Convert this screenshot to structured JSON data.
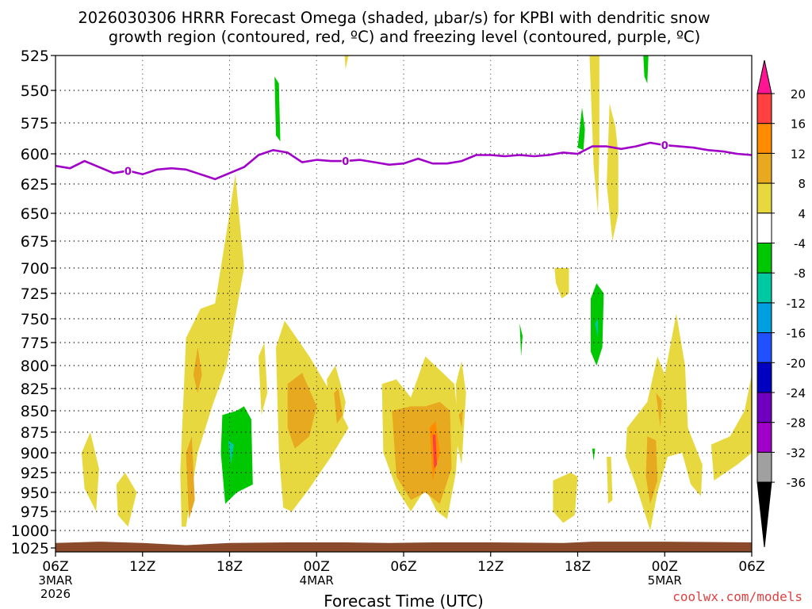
{
  "chart_data": {
    "type": "time-height",
    "title_line1": "2026030306 HRRR Forecast Omega (shaded, μbar/s) for KPBI with dendritic snow",
    "title_line2": "growth region (contoured, red, ºC) and freezing level (contoured, purple, ºC)",
    "xlabel": "Forecast Time (UTC)",
    "watermark": "coolwx.com/models",
    "x_hours_range": [
      0,
      48
    ],
    "y_levels": [
      "525",
      "550",
      "575",
      "600",
      "625",
      "650",
      "675",
      "700",
      "725",
      "750",
      "775",
      "800",
      "825",
      "850",
      "875",
      "900",
      "925",
      "950",
      "975",
      "1000",
      "1025"
    ],
    "x_ticks": [
      {
        "h": 0,
        "label": "06Z",
        "date": "3MAR",
        "year": "2026"
      },
      {
        "h": 6,
        "label": "12Z"
      },
      {
        "h": 12,
        "label": "18Z"
      },
      {
        "h": 18,
        "label": "00Z",
        "date": "4MAR"
      },
      {
        "h": 24,
        "label": "06Z"
      },
      {
        "h": 30,
        "label": "12Z"
      },
      {
        "h": 36,
        "label": "18Z"
      },
      {
        "h": 42,
        "label": "00Z",
        "date": "5MAR"
      },
      {
        "h": 48,
        "label": "06Z"
      }
    ],
    "colorbar": {
      "labels": [
        "20",
        "16",
        "12",
        "8",
        "4",
        "-4",
        "-8",
        "-12",
        "-16",
        "-20",
        "-24",
        "-28",
        "-32",
        "-36"
      ],
      "colors": [
        "#ff1493",
        "#ff4040",
        "#ff8c00",
        "#e7a920",
        "#e8d840",
        "#ffffff",
        "#00c800",
        "#00c8a0",
        "#00a0e0",
        "#2050ff",
        "#0000c0",
        "#7000c0",
        "#a000c8",
        "#a0a0a0",
        "#000000"
      ]
    },
    "freezing_level": {
      "color": "#a000c8",
      "label": "0",
      "label_hours": [
        5,
        20,
        42
      ],
      "points": [
        [
          0,
          610
        ],
        [
          1,
          612
        ],
        [
          2,
          606
        ],
        [
          3,
          611
        ],
        [
          4,
          616
        ],
        [
          5,
          614
        ],
        [
          6,
          617
        ],
        [
          7,
          613
        ],
        [
          8,
          612
        ],
        [
          9,
          613
        ],
        [
          10,
          617
        ],
        [
          11,
          621
        ],
        [
          12,
          616
        ],
        [
          13,
          611
        ],
        [
          14,
          601
        ],
        [
          15,
          597
        ],
        [
          16,
          599
        ],
        [
          17,
          607
        ],
        [
          18,
          605
        ],
        [
          19,
          606
        ],
        [
          20,
          606
        ],
        [
          21,
          605
        ],
        [
          22,
          607
        ],
        [
          23,
          609
        ],
        [
          24,
          608
        ],
        [
          25,
          604
        ],
        [
          26,
          608
        ],
        [
          27,
          608
        ],
        [
          28,
          606
        ],
        [
          29,
          601
        ],
        [
          30,
          601
        ],
        [
          31,
          602
        ],
        [
          32,
          601
        ],
        [
          33,
          602
        ],
        [
          34,
          601
        ],
        [
          35,
          599
        ],
        [
          36,
          600
        ],
        [
          37,
          594
        ],
        [
          38,
          594
        ],
        [
          39,
          596
        ],
        [
          40,
          594
        ],
        [
          41,
          591
        ],
        [
          42,
          593
        ],
        [
          43,
          594
        ],
        [
          44,
          595
        ],
        [
          45,
          597
        ],
        [
          46,
          598
        ],
        [
          47,
          600
        ],
        [
          48,
          601
        ]
      ]
    },
    "omega_features": [
      {
        "value": 6,
        "color": "#e8d840",
        "points": [
          [
            1.8,
            900
          ],
          [
            2.4,
            875
          ],
          [
            3.0,
            920
          ],
          [
            2.8,
            975
          ],
          [
            2.0,
            945
          ]
        ]
      },
      {
        "value": 6,
        "color": "#e8d840",
        "points": [
          [
            4.2,
            940
          ],
          [
            4.8,
            925
          ],
          [
            5.6,
            950
          ],
          [
            5.0,
            995
          ],
          [
            4.3,
            980
          ]
        ]
      },
      {
        "value": 6,
        "color": "#e8d840",
        "points": [
          [
            8.6,
            925
          ],
          [
            9.0,
            770
          ],
          [
            10.0,
            740
          ],
          [
            11.0,
            735
          ],
          [
            12.0,
            650
          ],
          [
            12.4,
            617
          ],
          [
            13.0,
            700
          ],
          [
            11.8,
            800
          ],
          [
            10.8,
            845
          ],
          [
            9.8,
            900
          ],
          [
            9.0,
            995
          ],
          [
            8.7,
            995
          ]
        ]
      },
      {
        "value": 10,
        "color": "#e7a920",
        "points": [
          [
            9.0,
            900
          ],
          [
            9.4,
            880
          ],
          [
            9.6,
            960
          ],
          [
            9.2,
            985
          ]
        ]
      },
      {
        "value": 10,
        "color": "#e7a920",
        "points": [
          [
            9.5,
            810
          ],
          [
            9.8,
            780
          ],
          [
            10.1,
            810
          ],
          [
            9.8,
            830
          ]
        ]
      },
      {
        "value": -6,
        "color": "#00c800",
        "points": [
          [
            11.5,
            855
          ],
          [
            12.5,
            850
          ],
          [
            13.0,
            845
          ],
          [
            13.5,
            860
          ],
          [
            13.6,
            940
          ],
          [
            12.5,
            950
          ],
          [
            11.7,
            965
          ],
          [
            11.4,
            900
          ]
        ]
      },
      {
        "value": -10,
        "color": "#00c8a0",
        "points": [
          [
            11.9,
            885
          ],
          [
            12.3,
            890
          ],
          [
            12.1,
            915
          ]
        ]
      },
      {
        "value": 6,
        "color": "#e8d840",
        "points": [
          [
            14.0,
            790
          ],
          [
            14.4,
            775
          ],
          [
            14.6,
            830
          ],
          [
            14.2,
            855
          ]
        ]
      },
      {
        "value": -6,
        "color": "#00c800",
        "points": [
          [
            15.1,
            540
          ],
          [
            15.4,
            545
          ],
          [
            15.5,
            590
          ],
          [
            15.2,
            585
          ]
        ]
      },
      {
        "value": -6,
        "color": "#00c800",
        "points": [
          [
            15.8,
            888
          ],
          [
            16.0,
            888
          ],
          [
            16.0,
            905
          ]
        ]
      },
      {
        "value": 6,
        "color": "#e8d840",
        "points": [
          [
            15.2,
            780
          ],
          [
            15.8,
            752
          ],
          [
            17.5,
            790
          ],
          [
            19.0,
            830
          ],
          [
            20.2,
            870
          ],
          [
            19.0,
            905
          ],
          [
            17.5,
            945
          ],
          [
            16.3,
            975
          ],
          [
            15.7,
            970
          ],
          [
            15.4,
            900
          ]
        ]
      },
      {
        "value": 10,
        "color": "#e7a920",
        "points": [
          [
            16.0,
            820
          ],
          [
            17.0,
            808
          ],
          [
            18.0,
            845
          ],
          [
            17.5,
            880
          ],
          [
            16.5,
            895
          ],
          [
            16.0,
            870
          ]
        ]
      },
      {
        "value": 6,
        "color": "#e8d840",
        "points": [
          [
            18.7,
            815
          ],
          [
            19.3,
            800
          ],
          [
            20.0,
            840
          ],
          [
            19.6,
            880
          ],
          [
            19.0,
            870
          ]
        ]
      },
      {
        "value": 10,
        "color": "#e7a920",
        "points": [
          [
            19.2,
            830
          ],
          [
            19.5,
            825
          ],
          [
            19.8,
            855
          ],
          [
            19.4,
            865
          ]
        ]
      },
      {
        "value": 6,
        "color": "#e8d840",
        "points": [
          [
            22.5,
            820
          ],
          [
            23.5,
            815
          ],
          [
            24.5,
            835
          ],
          [
            25.5,
            790
          ],
          [
            26.5,
            805
          ],
          [
            27.5,
            820
          ],
          [
            27.8,
            870
          ],
          [
            27.6,
            925
          ],
          [
            27.0,
            985
          ],
          [
            26.3,
            975
          ],
          [
            25.5,
            945
          ],
          [
            24.5,
            975
          ],
          [
            23.5,
            945
          ],
          [
            22.6,
            900
          ]
        ]
      },
      {
        "value": 10,
        "color": "#e7a920",
        "points": [
          [
            23.2,
            850
          ],
          [
            24.5,
            845
          ],
          [
            25.5,
            845
          ],
          [
            26.5,
            840
          ],
          [
            27.2,
            850
          ],
          [
            27.3,
            920
          ],
          [
            26.5,
            965
          ],
          [
            25.5,
            950
          ],
          [
            24.5,
            960
          ],
          [
            23.5,
            930
          ]
        ]
      },
      {
        "value": 14,
        "color": "#ff8c00",
        "points": [
          [
            25.8,
            870
          ],
          [
            26.2,
            862
          ],
          [
            26.5,
            900
          ],
          [
            26.0,
            935
          ]
        ]
      },
      {
        "value": 18,
        "color": "#ff4040",
        "points": [
          [
            26.0,
            878
          ],
          [
            26.2,
            878
          ],
          [
            26.3,
            915
          ],
          [
            26.1,
            920
          ]
        ]
      },
      {
        "value": 6,
        "color": "#e8d840",
        "points": [
          [
            27.6,
            820
          ],
          [
            28.0,
            795
          ],
          [
            28.3,
            830
          ],
          [
            28.0,
            915
          ],
          [
            27.7,
            890
          ]
        ]
      },
      {
        "value": 10,
        "color": "#e7a920",
        "points": [
          [
            27.8,
            855
          ],
          [
            28.1,
            848
          ],
          [
            28.0,
            870
          ]
        ]
      },
      {
        "value": -6,
        "color": "#00c800",
        "points": [
          [
            32.0,
            755
          ],
          [
            32.2,
            768
          ],
          [
            32.1,
            790
          ]
        ]
      },
      {
        "value": 6,
        "color": "#e8d840",
        "points": [
          [
            34.4,
            700
          ],
          [
            35.4,
            700
          ],
          [
            35.4,
            725
          ],
          [
            34.9,
            730
          ],
          [
            34.5,
            715
          ]
        ]
      },
      {
        "value": 6,
        "color": "#e8d840",
        "points": [
          [
            34.3,
            935
          ],
          [
            35.5,
            925
          ],
          [
            36.0,
            930
          ],
          [
            35.8,
            980
          ],
          [
            35.0,
            990
          ],
          [
            34.3,
            975
          ]
        ]
      },
      {
        "value": -6,
        "color": "#00c800",
        "points": [
          [
            36.0,
            595
          ],
          [
            36.3,
            563
          ],
          [
            36.5,
            580
          ],
          [
            36.4,
            597
          ]
        ]
      },
      {
        "value": -6,
        "color": "#00c800",
        "points": [
          [
            36.9,
            730
          ],
          [
            37.3,
            715
          ],
          [
            37.8,
            725
          ],
          [
            37.7,
            780
          ],
          [
            37.3,
            800
          ],
          [
            36.9,
            785
          ]
        ]
      },
      {
        "value": -10,
        "color": "#00c8a0",
        "points": [
          [
            37.2,
            755
          ],
          [
            37.4,
            750
          ],
          [
            37.4,
            770
          ]
        ]
      },
      {
        "value": -6,
        "color": "#00c800",
        "points": [
          [
            37.0,
            895
          ],
          [
            37.2,
            895
          ],
          [
            37.1,
            910
          ]
        ]
      },
      {
        "value": 6,
        "color": "#e8d840",
        "points": [
          [
            36.8,
            520
          ],
          [
            37.5,
            520
          ],
          [
            37.5,
            590
          ],
          [
            37.4,
            650
          ],
          [
            37.1,
            610
          ]
        ]
      },
      {
        "value": 6,
        "color": "#e8d840",
        "points": [
          [
            38.2,
            560
          ],
          [
            38.6,
            578
          ],
          [
            38.8,
            600
          ],
          [
            38.8,
            650
          ],
          [
            38.4,
            675
          ],
          [
            38.0,
            625
          ]
        ]
      },
      {
        "value": 6,
        "color": "#e8d840",
        "points": [
          [
            38.0,
            905
          ],
          [
            38.3,
            905
          ],
          [
            38.4,
            960
          ],
          [
            38.1,
            965
          ]
        ]
      },
      {
        "value": 6,
        "color": "#e8d840",
        "points": [
          [
            39.4,
            870
          ],
          [
            40.8,
            840
          ],
          [
            41.5,
            790
          ],
          [
            42.0,
            810
          ],
          [
            42.8,
            745
          ],
          [
            43.4,
            800
          ],
          [
            43.6,
            870
          ],
          [
            44.6,
            915
          ],
          [
            44.5,
            955
          ],
          [
            43.8,
            940
          ],
          [
            43.2,
            900
          ],
          [
            42.2,
            905
          ],
          [
            41.5,
            950
          ],
          [
            41.0,
            1000
          ],
          [
            40.0,
            940
          ],
          [
            39.3,
            905
          ]
        ]
      },
      {
        "value": 10,
        "color": "#e7a920",
        "points": [
          [
            40.8,
            880
          ],
          [
            41.4,
            885
          ],
          [
            41.5,
            935
          ],
          [
            41.0,
            965
          ],
          [
            40.7,
            930
          ]
        ]
      },
      {
        "value": 10,
        "color": "#e7a920",
        "points": [
          [
            41.4,
            830
          ],
          [
            41.8,
            838
          ],
          [
            41.7,
            870
          ]
        ]
      },
      {
        "value": -6,
        "color": "#00c800",
        "points": [
          [
            40.5,
            520
          ],
          [
            40.9,
            520
          ],
          [
            40.8,
            545
          ],
          [
            40.6,
            540
          ]
        ]
      },
      {
        "value": 6,
        "color": "#e8d840",
        "points": [
          [
            45.2,
            890
          ],
          [
            46.5,
            880
          ],
          [
            47.5,
            850
          ],
          [
            48.0,
            810
          ],
          [
            48.0,
            900
          ],
          [
            47.0,
            915
          ],
          [
            45.4,
            935
          ]
        ]
      },
      {
        "value": 6,
        "color": "#e8d840",
        "points": [
          [
            19.9,
            520
          ],
          [
            20.3,
            520
          ],
          [
            20.0,
            535
          ]
        ]
      }
    ],
    "surface_color": "#8b4a2b"
  }
}
